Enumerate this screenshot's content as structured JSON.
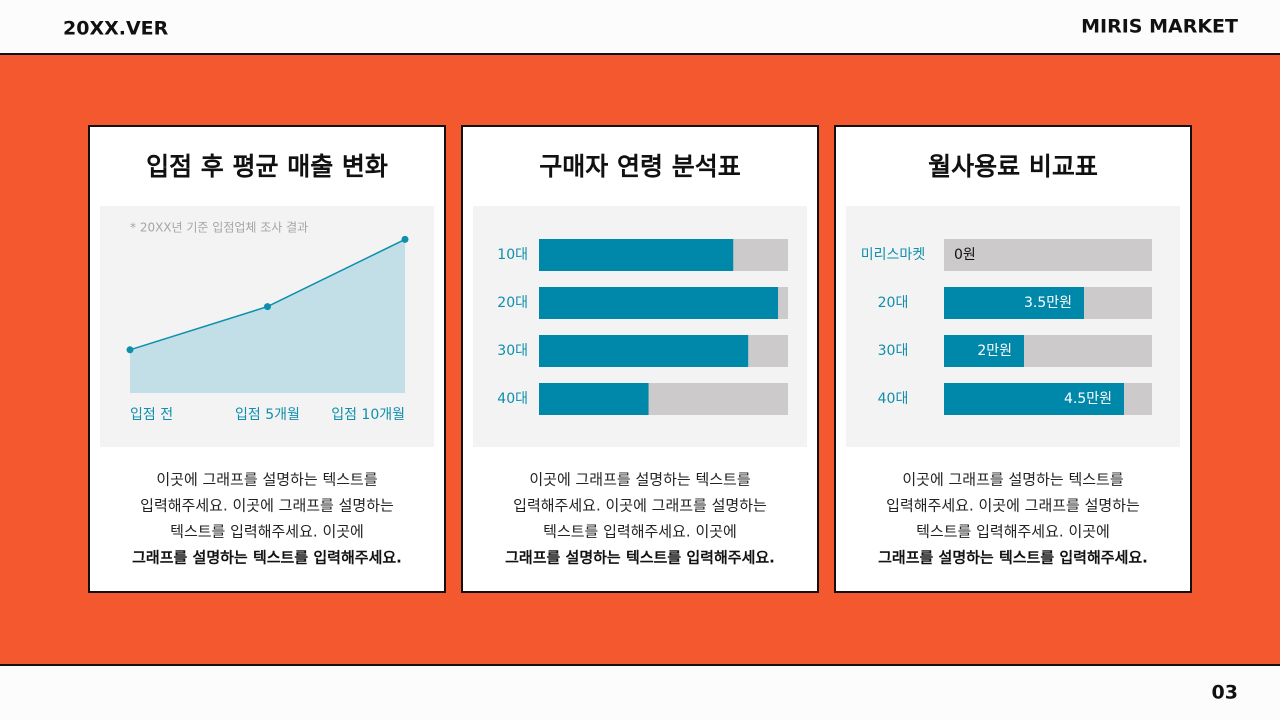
{
  "header": {
    "version": "20XX.VER",
    "brand": "MIRIS MARKET"
  },
  "page_number": "03",
  "chart_data": [
    {
      "type": "area",
      "title": "입점 후 평균 매출 변화",
      "note": "* 20XX년 기준 입점업체 조사 결과",
      "categories": [
        "입점 전",
        "입점 5개월",
        "입점 10개월"
      ],
      "values": [
        27,
        54,
        96
      ],
      "ylim": [
        0,
        100
      ],
      "color": "#0e8fac",
      "fill": "#c2dfe7",
      "caption": [
        "이곳에 그래프를 설명하는 텍스트를",
        "입력해주세요. 이곳에 그래프를 설명하는",
        "텍스트를 입력해주세요. 이곳에"
      ],
      "caption_bold": "그래프를 설명하는 텍스트를 입력해주세요."
    },
    {
      "type": "bar",
      "orientation": "horizontal",
      "title": "구매자 연령 분석표",
      "categories": [
        "10대",
        "20대",
        "30대",
        "40대"
      ],
      "values": [
        78,
        96,
        84,
        44
      ],
      "xlim": [
        0,
        100
      ],
      "color": "#0088aa",
      "track_color": "#cccaca",
      "caption": [
        "이곳에 그래프를 설명하는 텍스트를",
        "입력해주세요. 이곳에 그래프를 설명하는",
        "텍스트를 입력해주세요. 이곳에"
      ],
      "caption_bold": "그래프를 설명하는 텍스트를 입력해주세요."
    },
    {
      "type": "bar",
      "orientation": "horizontal",
      "title": "월사용료 비교표",
      "categories": [
        "미리스마켓",
        "20대",
        "30대",
        "40대"
      ],
      "values": [
        0,
        3.5,
        2,
        4.5
      ],
      "value_labels": [
        "0원",
        "3.5만원",
        "2만원",
        "4.5만원"
      ],
      "xlim": [
        0,
        5.2
      ],
      "color": "#0088aa",
      "track_color": "#cccaca",
      "caption": [
        "이곳에 그래프를 설명하는 텍스트를",
        "입력해주세요. 이곳에 그래프를 설명하는",
        "텍스트를 입력해주세요. 이곳에"
      ],
      "caption_bold": "그래프를 설명하는 텍스트를 입력해주세요."
    }
  ]
}
